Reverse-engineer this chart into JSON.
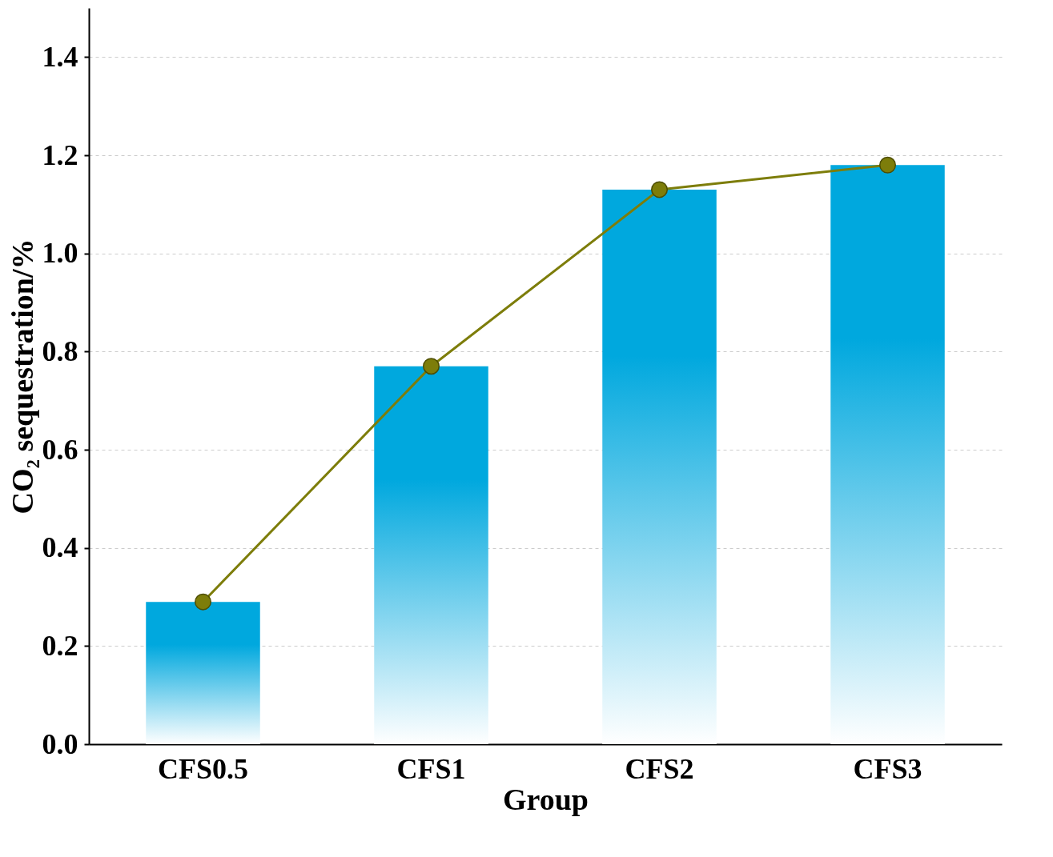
{
  "chart_data": {
    "type": "bar",
    "xlabel": "Group",
    "ylabel": "CO₂ sequestration/%",
    "categories": [
      "CFS0.5",
      "CFS1",
      "CFS2",
      "CFS3"
    ],
    "series": [
      {
        "color": "#00a8de",
        "values": [
          0.29,
          0.77,
          1.13,
          1.18
        ]
      },
      {
        "type": "line",
        "color": "#7d7d0a",
        "values": [
          0.29,
          0.77,
          1.13,
          1.18
        ],
        "marker": "circle",
        "line_style": "solid"
      }
    ],
    "ylim": [
      0,
      1.5
    ],
    "yticks": [
      {
        "value": 0,
        "label": "0.0"
      },
      0.2,
      0.4,
      0.6,
      0.8,
      {
        "value": 1,
        "label": "1.0"
      },
      1.2,
      1.4
    ],
    "grid": "y"
  }
}
